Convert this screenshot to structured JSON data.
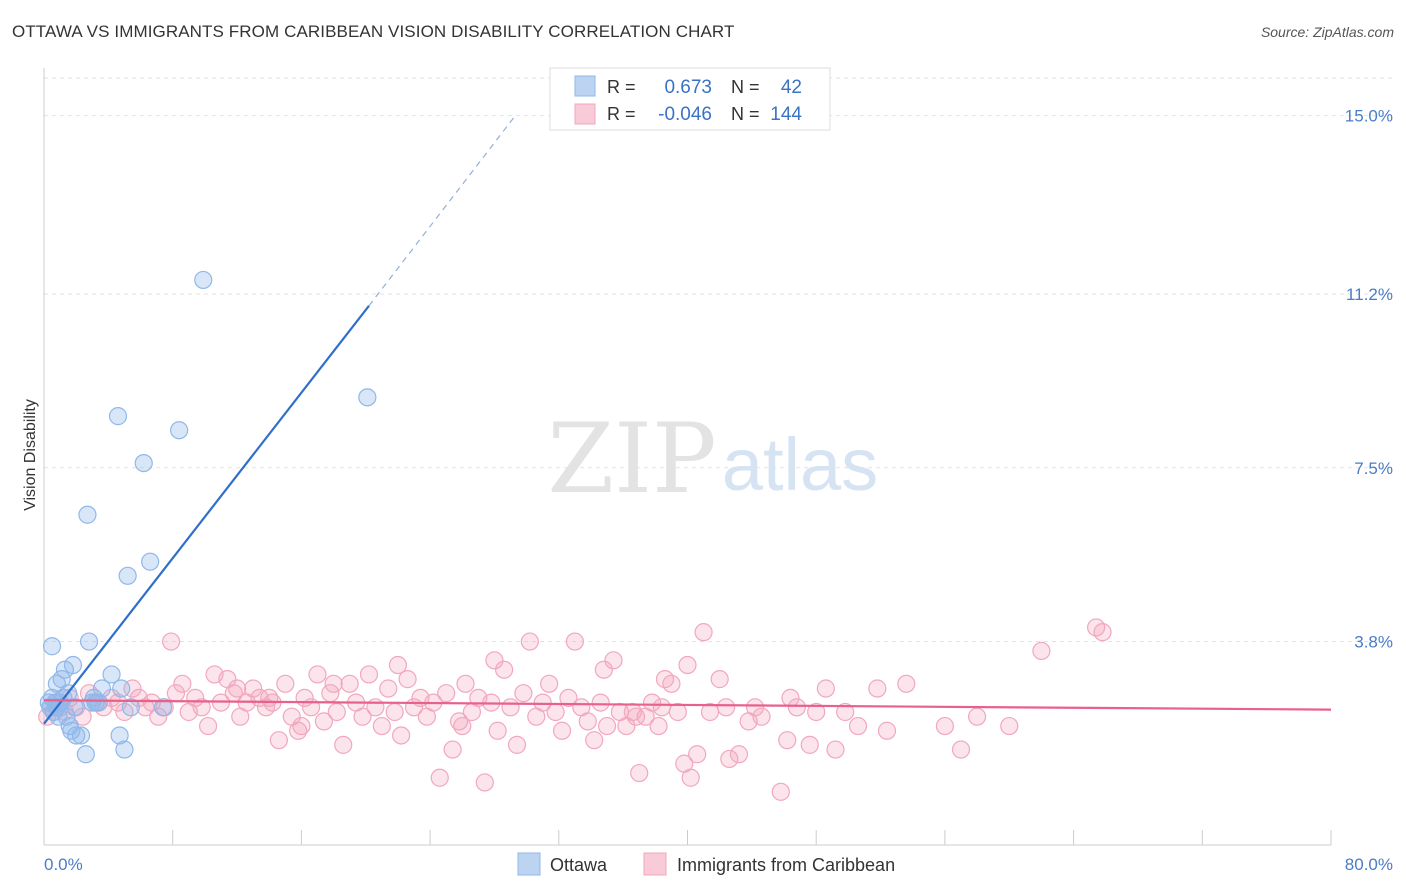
{
  "title": "OTTAWA VS IMMIGRANTS FROM CARIBBEAN VISION DISABILITY CORRELATION CHART",
  "source": "Source: ZipAtlas.com",
  "watermark": {
    "zip": "ZIP",
    "atlas": "atlas"
  },
  "legend_box": {
    "rows": [
      {
        "r_label": "R =",
        "r_value": "0.673",
        "n_label": "N =",
        "n_value": "42",
        "color": "#8fb8ea"
      },
      {
        "r_label": "R =",
        "r_value": "-0.046",
        "n_label": "N =",
        "n_value": "144",
        "color": "#f2a7bd"
      }
    ]
  },
  "chart_data": {
    "type": "scatter",
    "title": "OTTAWA VS IMMIGRANTS FROM CARIBBEAN VISION DISABILITY CORRELATION CHART",
    "xlabel": "",
    "ylabel": "Vision Disability",
    "xlim": [
      0,
      80
    ],
    "ylim": [
      0,
      15.8
    ],
    "x_tick_labels": [
      "0.0%",
      "80.0%"
    ],
    "y_ticks": [
      {
        "value": 3.8,
        "label": "3.8%"
      },
      {
        "value": 7.5,
        "label": "7.5%"
      },
      {
        "value": 11.2,
        "label": "11.2%"
      },
      {
        "value": 15.0,
        "label": "15.0%"
      }
    ],
    "grid": true,
    "legend_position": "top-center",
    "series": [
      {
        "name": "Ottawa",
        "color": "#8fb8ea",
        "line_color": "#2f6fcc",
        "r": 0.673,
        "n": 42,
        "trend": {
          "x0": 0.0,
          "y0": 2.05,
          "x1": 20.2,
          "y1": 10.95,
          "x_dash_end": 29.3,
          "y_dash_end": 15.0
        },
        "points": [
          [
            0.3,
            2.5
          ],
          [
            0.4,
            2.4
          ],
          [
            0.5,
            2.6
          ],
          [
            0.6,
            2.3
          ],
          [
            0.7,
            2.5
          ],
          [
            0.8,
            2.9
          ],
          [
            0.8,
            2.4
          ],
          [
            0.9,
            2.2
          ],
          [
            1.0,
            2.5
          ],
          [
            1.1,
            3.0
          ],
          [
            1.2,
            2.6
          ],
          [
            1.3,
            3.2
          ],
          [
            1.4,
            2.2
          ],
          [
            1.5,
            2.7
          ],
          [
            1.6,
            2.0
          ],
          [
            1.7,
            1.9
          ],
          [
            1.8,
            3.3
          ],
          [
            2.0,
            1.8
          ],
          [
            2.3,
            1.8
          ],
          [
            2.6,
            1.4
          ],
          [
            2.8,
            3.8
          ],
          [
            3.0,
            2.5
          ],
          [
            3.2,
            2.5
          ],
          [
            3.4,
            2.5
          ],
          [
            3.6,
            2.8
          ],
          [
            4.2,
            3.1
          ],
          [
            4.6,
            8.6
          ],
          [
            4.7,
            1.8
          ],
          [
            5.0,
            1.5
          ],
          [
            5.2,
            5.2
          ],
          [
            5.4,
            2.4
          ],
          [
            6.2,
            7.6
          ],
          [
            6.6,
            5.5
          ],
          [
            7.4,
            2.4
          ],
          [
            8.4,
            8.3
          ],
          [
            9.9,
            11.5
          ],
          [
            20.1,
            9.0
          ],
          [
            0.5,
            3.7
          ],
          [
            2.7,
            6.5
          ],
          [
            4.8,
            2.8
          ],
          [
            1.9,
            2.4
          ],
          [
            3.1,
            2.6
          ]
        ]
      },
      {
        "name": "Immigrants from Caribbean",
        "color": "#f2a7bd",
        "line_color": "#e8608c",
        "r": -0.046,
        "n": 144,
        "trend": {
          "x0": 0.0,
          "y0": 2.55,
          "x1": 80.0,
          "y1": 2.35
        },
        "points": [
          [
            0.2,
            2.2
          ],
          [
            0.4,
            2.4
          ],
          [
            0.6,
            2.3
          ],
          [
            0.8,
            2.5
          ],
          [
            1.0,
            2.4
          ],
          [
            1.3,
            2.3
          ],
          [
            1.6,
            2.6
          ],
          [
            2.0,
            2.4
          ],
          [
            2.4,
            2.2
          ],
          [
            2.8,
            2.7
          ],
          [
            3.3,
            2.5
          ],
          [
            3.7,
            2.4
          ],
          [
            4.2,
            2.6
          ],
          [
            4.6,
            2.5
          ],
          [
            5.0,
            2.3
          ],
          [
            5.5,
            2.8
          ],
          [
            5.9,
            2.6
          ],
          [
            6.3,
            2.4
          ],
          [
            6.7,
            2.5
          ],
          [
            7.1,
            2.2
          ],
          [
            7.5,
            2.4
          ],
          [
            7.9,
            3.8
          ],
          [
            8.2,
            2.7
          ],
          [
            8.6,
            2.9
          ],
          [
            9.0,
            2.3
          ],
          [
            9.4,
            2.6
          ],
          [
            9.8,
            2.4
          ],
          [
            10.2,
            2.0
          ],
          [
            10.6,
            3.1
          ],
          [
            11.0,
            2.5
          ],
          [
            11.4,
            3.0
          ],
          [
            11.8,
            2.7
          ],
          [
            12.2,
            2.2
          ],
          [
            12.6,
            2.5
          ],
          [
            13.0,
            2.8
          ],
          [
            13.4,
            2.6
          ],
          [
            13.8,
            2.4
          ],
          [
            14.2,
            2.5
          ],
          [
            14.6,
            1.7
          ],
          [
            15.0,
            2.9
          ],
          [
            15.4,
            2.2
          ],
          [
            15.8,
            1.9
          ],
          [
            16.2,
            2.6
          ],
          [
            16.6,
            2.4
          ],
          [
            17.0,
            3.1
          ],
          [
            17.4,
            2.1
          ],
          [
            17.8,
            2.7
          ],
          [
            18.2,
            2.3
          ],
          [
            18.6,
            1.6
          ],
          [
            19.0,
            2.9
          ],
          [
            19.4,
            2.5
          ],
          [
            19.8,
            2.2
          ],
          [
            20.2,
            3.1
          ],
          [
            20.6,
            2.4
          ],
          [
            21.0,
            2.0
          ],
          [
            21.4,
            2.8
          ],
          [
            21.8,
            2.3
          ],
          [
            22.2,
            1.8
          ],
          [
            22.6,
            3.0
          ],
          [
            23.0,
            2.4
          ],
          [
            23.4,
            2.6
          ],
          [
            23.8,
            2.2
          ],
          [
            24.2,
            2.5
          ],
          [
            24.6,
            0.9
          ],
          [
            25.0,
            2.7
          ],
          [
            25.4,
            1.5
          ],
          [
            25.8,
            2.1
          ],
          [
            26.2,
            2.9
          ],
          [
            26.6,
            2.3
          ],
          [
            27.0,
            2.6
          ],
          [
            27.4,
            0.8
          ],
          [
            27.8,
            2.5
          ],
          [
            28.2,
            1.9
          ],
          [
            28.6,
            3.2
          ],
          [
            29.0,
            2.4
          ],
          [
            29.4,
            1.6
          ],
          [
            29.8,
            2.7
          ],
          [
            30.2,
            3.8
          ],
          [
            30.6,
            2.2
          ],
          [
            31.0,
            2.5
          ],
          [
            31.4,
            2.9
          ],
          [
            31.8,
            2.3
          ],
          [
            32.2,
            1.9
          ],
          [
            32.6,
            2.6
          ],
          [
            33.0,
            3.8
          ],
          [
            33.4,
            2.4
          ],
          [
            33.8,
            2.1
          ],
          [
            34.2,
            1.7
          ],
          [
            34.6,
            2.5
          ],
          [
            35.0,
            2.0
          ],
          [
            35.4,
            3.4
          ],
          [
            35.8,
            2.3
          ],
          [
            36.2,
            2.0
          ],
          [
            36.6,
            2.3
          ],
          [
            37.0,
            1.0
          ],
          [
            37.4,
            2.2
          ],
          [
            37.8,
            2.5
          ],
          [
            38.2,
            2.0
          ],
          [
            38.6,
            3.0
          ],
          [
            39.0,
            2.9
          ],
          [
            39.4,
            2.3
          ],
          [
            39.8,
            1.2
          ],
          [
            40.2,
            0.9
          ],
          [
            40.6,
            1.4
          ],
          [
            41.0,
            4.0
          ],
          [
            41.4,
            2.3
          ],
          [
            42.0,
            3.0
          ],
          [
            42.6,
            1.3
          ],
          [
            43.2,
            1.4
          ],
          [
            43.8,
            2.1
          ],
          [
            44.6,
            2.2
          ],
          [
            45.8,
            0.6
          ],
          [
            46.2,
            1.7
          ],
          [
            46.8,
            2.4
          ],
          [
            47.6,
            1.6
          ],
          [
            48.0,
            2.3
          ],
          [
            48.6,
            2.8
          ],
          [
            49.2,
            1.5
          ],
          [
            49.8,
            2.3
          ],
          [
            50.6,
            2.0
          ],
          [
            51.8,
            2.8
          ],
          [
            52.4,
            1.9
          ],
          [
            53.6,
            2.9
          ],
          [
            56.0,
            2.0
          ],
          [
            57.0,
            1.5
          ],
          [
            58.0,
            2.2
          ],
          [
            60.0,
            2.0
          ],
          [
            62.0,
            3.6
          ],
          [
            65.4,
            4.1
          ],
          [
            65.8,
            4.0
          ],
          [
            12.0,
            2.8
          ],
          [
            14.0,
            2.6
          ],
          [
            16.0,
            2.0
          ],
          [
            18.0,
            2.9
          ],
          [
            22.0,
            3.3
          ],
          [
            26.0,
            2.0
          ],
          [
            28.0,
            3.4
          ],
          [
            34.8,
            3.2
          ],
          [
            36.8,
            2.2
          ],
          [
            38.4,
            2.4
          ],
          [
            40.0,
            3.3
          ],
          [
            42.4,
            2.4
          ],
          [
            44.2,
            2.4
          ],
          [
            46.4,
            2.6
          ]
        ]
      }
    ]
  },
  "bottom_legend": [
    {
      "label": "Ottawa",
      "color": "#8fb8ea"
    },
    {
      "label": "Immigrants from Caribbean",
      "color": "#f2a7bd"
    }
  ]
}
